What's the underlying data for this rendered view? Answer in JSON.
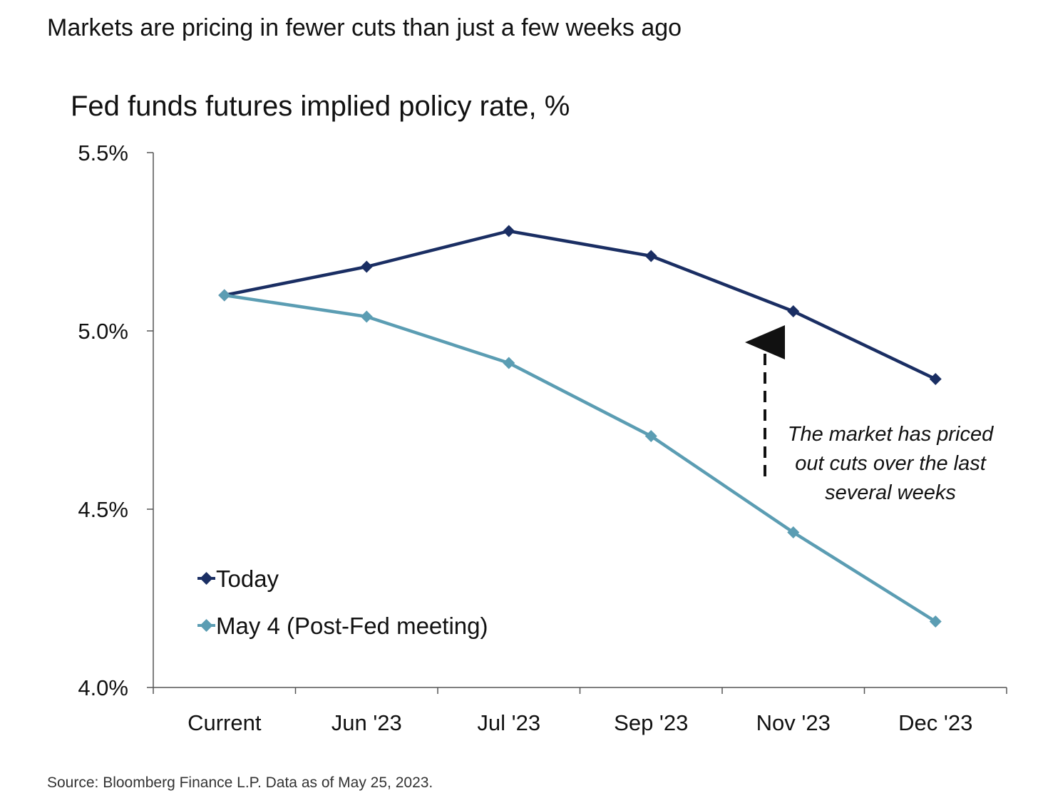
{
  "headline": "Markets are pricing in fewer cuts than just a few weeks ago",
  "source": "Source: Bloomberg Finance L.P. Data as of May 25, 2023.",
  "colors": {
    "today": "#1a2e63",
    "may4": "#5b9db3",
    "axis": "#555555",
    "text": "#111111"
  },
  "chart_data": {
    "type": "line",
    "title": "Fed funds futures implied policy rate, %",
    "categories": [
      "Current",
      "Jun '23",
      "Jul '23",
      "Sep '23",
      "Nov '23",
      "Dec '23"
    ],
    "ylim": [
      4.0,
      5.5
    ],
    "yticks": [
      {
        "value": 4.0,
        "label": "4.0%"
      },
      {
        "value": 4.5,
        "label": "4.5%"
      },
      {
        "value": 5.0,
        "label": "5.0%"
      },
      {
        "value": 5.5,
        "label": "5.5%"
      }
    ],
    "grid": false,
    "legend_position": "bottom-left",
    "series": [
      {
        "name": "Today",
        "color": "#1a2e63",
        "marker": "diamond",
        "values": [
          5.1,
          5.18,
          5.28,
          5.21,
          5.055,
          4.865
        ]
      },
      {
        "name": "May 4 (Post-Fed meeting)",
        "color": "#5b9db3",
        "marker": "diamond",
        "values": [
          5.1,
          5.04,
          4.91,
          4.705,
          4.435,
          4.185
        ]
      }
    ],
    "annotation": {
      "lines": [
        "The market has priced",
        "out cuts over the last",
        "several weeks"
      ],
      "arrow": "dashed, pointing up"
    }
  }
}
